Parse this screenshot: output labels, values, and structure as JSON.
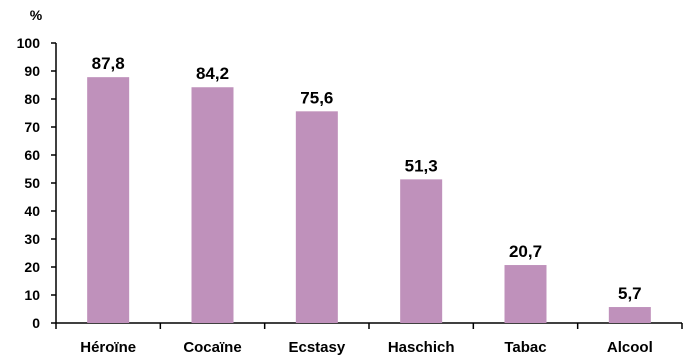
{
  "chart_data": {
    "type": "bar",
    "title": "",
    "xlabel": "",
    "ylabel": "%",
    "categories": [
      "Héroïne",
      "Cocaïne",
      "Ecstasy",
      "Haschich",
      "Tabac",
      "Alcool"
    ],
    "values": [
      87.8,
      84.2,
      75.6,
      51.3,
      20.7,
      5.7
    ],
    "value_labels": [
      "87,8",
      "84,2",
      "75,6",
      "51,3",
      "20,7",
      "5,7"
    ],
    "ylim": [
      0,
      100
    ],
    "yticks": [
      0,
      10,
      20,
      30,
      40,
      50,
      60,
      70,
      80,
      90,
      100
    ],
    "grid": false,
    "legend": "none",
    "bar_color": "#bf91bb"
  }
}
